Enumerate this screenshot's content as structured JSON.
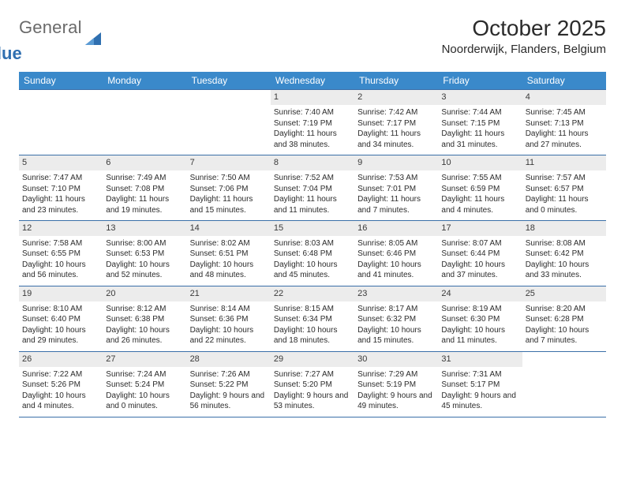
{
  "brand": {
    "text1": "General",
    "text2": "Blue",
    "icon_color": "#2f6fb0"
  },
  "title": "October 2025",
  "subtitle": "Noorderwijk, Flanders, Belgium",
  "colors": {
    "header_bg": "#3a89ca",
    "header_text": "#ffffff",
    "row_border": "#3a6fa8",
    "daynum_bg": "#ececec",
    "text": "#2b2b2b",
    "logo_gray": "#6a6a6a",
    "logo_blue": "#2f6fb0",
    "page_bg": "#ffffff"
  },
  "days_of_week": [
    "Sunday",
    "Monday",
    "Tuesday",
    "Wednesday",
    "Thursday",
    "Friday",
    "Saturday"
  ],
  "weeks": [
    [
      {
        "day": "",
        "sunrise": "",
        "sunset": "",
        "daylight": ""
      },
      {
        "day": "",
        "sunrise": "",
        "sunset": "",
        "daylight": ""
      },
      {
        "day": "",
        "sunrise": "",
        "sunset": "",
        "daylight": ""
      },
      {
        "day": "1",
        "sunrise": "Sunrise: 7:40 AM",
        "sunset": "Sunset: 7:19 PM",
        "daylight": "Daylight: 11 hours and 38 minutes."
      },
      {
        "day": "2",
        "sunrise": "Sunrise: 7:42 AM",
        "sunset": "Sunset: 7:17 PM",
        "daylight": "Daylight: 11 hours and 34 minutes."
      },
      {
        "day": "3",
        "sunrise": "Sunrise: 7:44 AM",
        "sunset": "Sunset: 7:15 PM",
        "daylight": "Daylight: 11 hours and 31 minutes."
      },
      {
        "day": "4",
        "sunrise": "Sunrise: 7:45 AM",
        "sunset": "Sunset: 7:13 PM",
        "daylight": "Daylight: 11 hours and 27 minutes."
      }
    ],
    [
      {
        "day": "5",
        "sunrise": "Sunrise: 7:47 AM",
        "sunset": "Sunset: 7:10 PM",
        "daylight": "Daylight: 11 hours and 23 minutes."
      },
      {
        "day": "6",
        "sunrise": "Sunrise: 7:49 AM",
        "sunset": "Sunset: 7:08 PM",
        "daylight": "Daylight: 11 hours and 19 minutes."
      },
      {
        "day": "7",
        "sunrise": "Sunrise: 7:50 AM",
        "sunset": "Sunset: 7:06 PM",
        "daylight": "Daylight: 11 hours and 15 minutes."
      },
      {
        "day": "8",
        "sunrise": "Sunrise: 7:52 AM",
        "sunset": "Sunset: 7:04 PM",
        "daylight": "Daylight: 11 hours and 11 minutes."
      },
      {
        "day": "9",
        "sunrise": "Sunrise: 7:53 AM",
        "sunset": "Sunset: 7:01 PM",
        "daylight": "Daylight: 11 hours and 7 minutes."
      },
      {
        "day": "10",
        "sunrise": "Sunrise: 7:55 AM",
        "sunset": "Sunset: 6:59 PM",
        "daylight": "Daylight: 11 hours and 4 minutes."
      },
      {
        "day": "11",
        "sunrise": "Sunrise: 7:57 AM",
        "sunset": "Sunset: 6:57 PM",
        "daylight": "Daylight: 11 hours and 0 minutes."
      }
    ],
    [
      {
        "day": "12",
        "sunrise": "Sunrise: 7:58 AM",
        "sunset": "Sunset: 6:55 PM",
        "daylight": "Daylight: 10 hours and 56 minutes."
      },
      {
        "day": "13",
        "sunrise": "Sunrise: 8:00 AM",
        "sunset": "Sunset: 6:53 PM",
        "daylight": "Daylight: 10 hours and 52 minutes."
      },
      {
        "day": "14",
        "sunrise": "Sunrise: 8:02 AM",
        "sunset": "Sunset: 6:51 PM",
        "daylight": "Daylight: 10 hours and 48 minutes."
      },
      {
        "day": "15",
        "sunrise": "Sunrise: 8:03 AM",
        "sunset": "Sunset: 6:48 PM",
        "daylight": "Daylight: 10 hours and 45 minutes."
      },
      {
        "day": "16",
        "sunrise": "Sunrise: 8:05 AM",
        "sunset": "Sunset: 6:46 PM",
        "daylight": "Daylight: 10 hours and 41 minutes."
      },
      {
        "day": "17",
        "sunrise": "Sunrise: 8:07 AM",
        "sunset": "Sunset: 6:44 PM",
        "daylight": "Daylight: 10 hours and 37 minutes."
      },
      {
        "day": "18",
        "sunrise": "Sunrise: 8:08 AM",
        "sunset": "Sunset: 6:42 PM",
        "daylight": "Daylight: 10 hours and 33 minutes."
      }
    ],
    [
      {
        "day": "19",
        "sunrise": "Sunrise: 8:10 AM",
        "sunset": "Sunset: 6:40 PM",
        "daylight": "Daylight: 10 hours and 29 minutes."
      },
      {
        "day": "20",
        "sunrise": "Sunrise: 8:12 AM",
        "sunset": "Sunset: 6:38 PM",
        "daylight": "Daylight: 10 hours and 26 minutes."
      },
      {
        "day": "21",
        "sunrise": "Sunrise: 8:14 AM",
        "sunset": "Sunset: 6:36 PM",
        "daylight": "Daylight: 10 hours and 22 minutes."
      },
      {
        "day": "22",
        "sunrise": "Sunrise: 8:15 AM",
        "sunset": "Sunset: 6:34 PM",
        "daylight": "Daylight: 10 hours and 18 minutes."
      },
      {
        "day": "23",
        "sunrise": "Sunrise: 8:17 AM",
        "sunset": "Sunset: 6:32 PM",
        "daylight": "Daylight: 10 hours and 15 minutes."
      },
      {
        "day": "24",
        "sunrise": "Sunrise: 8:19 AM",
        "sunset": "Sunset: 6:30 PM",
        "daylight": "Daylight: 10 hours and 11 minutes."
      },
      {
        "day": "25",
        "sunrise": "Sunrise: 8:20 AM",
        "sunset": "Sunset: 6:28 PM",
        "daylight": "Daylight: 10 hours and 7 minutes."
      }
    ],
    [
      {
        "day": "26",
        "sunrise": "Sunrise: 7:22 AM",
        "sunset": "Sunset: 5:26 PM",
        "daylight": "Daylight: 10 hours and 4 minutes."
      },
      {
        "day": "27",
        "sunrise": "Sunrise: 7:24 AM",
        "sunset": "Sunset: 5:24 PM",
        "daylight": "Daylight: 10 hours and 0 minutes."
      },
      {
        "day": "28",
        "sunrise": "Sunrise: 7:26 AM",
        "sunset": "Sunset: 5:22 PM",
        "daylight": "Daylight: 9 hours and 56 minutes."
      },
      {
        "day": "29",
        "sunrise": "Sunrise: 7:27 AM",
        "sunset": "Sunset: 5:20 PM",
        "daylight": "Daylight: 9 hours and 53 minutes."
      },
      {
        "day": "30",
        "sunrise": "Sunrise: 7:29 AM",
        "sunset": "Sunset: 5:19 PM",
        "daylight": "Daylight: 9 hours and 49 minutes."
      },
      {
        "day": "31",
        "sunrise": "Sunrise: 7:31 AM",
        "sunset": "Sunset: 5:17 PM",
        "daylight": "Daylight: 9 hours and 45 minutes."
      },
      {
        "day": "",
        "sunrise": "",
        "sunset": "",
        "daylight": ""
      }
    ]
  ]
}
